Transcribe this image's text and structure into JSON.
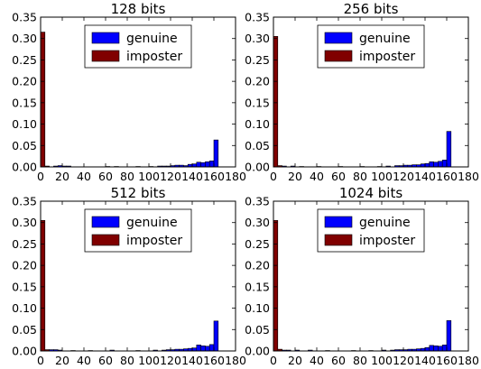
{
  "colors": {
    "genuine": "#0000ff",
    "imposter": "#800000",
    "axis": "#000000",
    "background": "#ffffff"
  },
  "chart_data": [
    {
      "type": "bar",
      "title": "128 bits",
      "xlim": [
        0,
        180
      ],
      "ylim": [
        0,
        0.35
      ],
      "xticks": [
        "0",
        "20",
        "40",
        "60",
        "80",
        "100",
        "120",
        "140",
        "160",
        "180"
      ],
      "yticks": [
        "0.00",
        "0.05",
        "0.10",
        "0.15",
        "0.20",
        "0.25",
        "0.30",
        "0.35"
      ],
      "legend": {
        "position": "top-center",
        "entries": [
          "genuine",
          "imposter"
        ]
      },
      "bin_width": 4,
      "series": [
        {
          "name": "imposter",
          "bins": [
            [
              0,
              0.315
            ],
            [
              4,
              0.002
            ]
          ]
        },
        {
          "name": "genuine",
          "bins": [
            [
              12,
              0.002
            ],
            [
              16,
              0.003
            ],
            [
              20,
              0.002
            ],
            [
              24,
              0.002
            ],
            [
              60,
              0.001
            ],
            [
              68,
              0.001
            ],
            [
              88,
              0.001
            ],
            [
              100,
              0.001
            ],
            [
              108,
              0.002
            ],
            [
              112,
              0.002
            ],
            [
              116,
              0.002
            ],
            [
              120,
              0.003
            ],
            [
              124,
              0.004
            ],
            [
              128,
              0.004
            ],
            [
              132,
              0.003
            ],
            [
              136,
              0.006
            ],
            [
              140,
              0.007
            ],
            [
              144,
              0.011
            ],
            [
              148,
              0.01
            ],
            [
              152,
              0.012
            ],
            [
              156,
              0.014
            ],
            [
              160,
              0.063
            ]
          ]
        }
      ]
    },
    {
      "type": "bar",
      "title": "256 bits",
      "xlim": [
        0,
        180
      ],
      "ylim": [
        0,
        0.35
      ],
      "xticks": [
        "0",
        "20",
        "40",
        "60",
        "80",
        "100",
        "120",
        "140",
        "160",
        "180"
      ],
      "yticks": [
        "0.00",
        "0.05",
        "0.10",
        "0.15",
        "0.20",
        "0.25",
        "0.30",
        "0.35"
      ],
      "legend": {
        "position": "top-center",
        "entries": [
          "genuine",
          "imposter"
        ]
      },
      "bin_width": 4,
      "series": [
        {
          "name": "imposter",
          "bins": [
            [
              0,
              0.305
            ],
            [
              4,
              0.003
            ]
          ]
        },
        {
          "name": "genuine",
          "bins": [
            [
              8,
              0.002
            ],
            [
              16,
              0.002
            ],
            [
              24,
              0.001
            ],
            [
              40,
              0.001
            ],
            [
              60,
              0.001
            ],
            [
              80,
              0.001
            ],
            [
              96,
              0.001
            ],
            [
              104,
              0.002
            ],
            [
              112,
              0.003
            ],
            [
              116,
              0.003
            ],
            [
              120,
              0.004
            ],
            [
              124,
              0.004
            ],
            [
              128,
              0.005
            ],
            [
              132,
              0.005
            ],
            [
              136,
              0.007
            ],
            [
              140,
              0.008
            ],
            [
              144,
              0.012
            ],
            [
              148,
              0.011
            ],
            [
              152,
              0.013
            ],
            [
              156,
              0.016
            ],
            [
              160,
              0.083
            ]
          ]
        }
      ]
    },
    {
      "type": "bar",
      "title": "512 bits",
      "xlim": [
        0,
        180
      ],
      "ylim": [
        0,
        0.35
      ],
      "xticks": [
        "0",
        "20",
        "40",
        "60",
        "80",
        "100",
        "120",
        "140",
        "160",
        "180"
      ],
      "yticks": [
        "0.00",
        "0.05",
        "0.10",
        "0.15",
        "0.20",
        "0.25",
        "0.30",
        "0.35"
      ],
      "legend": {
        "position": "top-center",
        "entries": [
          "genuine",
          "imposter"
        ]
      },
      "bin_width": 4,
      "series": [
        {
          "name": "imposter",
          "bins": [
            [
              0,
              0.305
            ],
            [
              4,
              0.003
            ]
          ]
        },
        {
          "name": "genuine",
          "bins": [
            [
              8,
              0.003
            ],
            [
              12,
              0.003
            ],
            [
              16,
              0.002
            ],
            [
              28,
              0.001
            ],
            [
              44,
              0.001
            ],
            [
              64,
              0.002
            ],
            [
              88,
              0.001
            ],
            [
              104,
              0.002
            ],
            [
              112,
              0.002
            ],
            [
              116,
              0.003
            ],
            [
              120,
              0.003
            ],
            [
              124,
              0.004
            ],
            [
              128,
              0.004
            ],
            [
              132,
              0.005
            ],
            [
              136,
              0.006
            ],
            [
              140,
              0.007
            ],
            [
              144,
              0.014
            ],
            [
              148,
              0.012
            ],
            [
              152,
              0.011
            ],
            [
              156,
              0.015
            ],
            [
              160,
              0.07
            ]
          ]
        }
      ]
    },
    {
      "type": "bar",
      "title": "1024 bits",
      "xlim": [
        0,
        180
      ],
      "ylim": [
        0,
        0.35
      ],
      "xticks": [
        "0",
        "20",
        "40",
        "60",
        "80",
        "100",
        "120",
        "140",
        "160",
        "180"
      ],
      "yticks": [
        "0.00",
        "0.05",
        "0.10",
        "0.15",
        "0.20",
        "0.25",
        "0.30",
        "0.35"
      ],
      "legend": {
        "position": "top-center",
        "entries": [
          "genuine",
          "imposter"
        ]
      },
      "bin_width": 4,
      "series": [
        {
          "name": "imposter",
          "bins": [
            [
              0,
              0.305
            ],
            [
              4,
              0.004
            ]
          ]
        },
        {
          "name": "genuine",
          "bins": [
            [
              8,
              0.002
            ],
            [
              12,
              0.002
            ],
            [
              20,
              0.002
            ],
            [
              32,
              0.002
            ],
            [
              48,
              0.001
            ],
            [
              72,
              0.001
            ],
            [
              88,
              0.001
            ],
            [
              100,
              0.002
            ],
            [
              108,
              0.002
            ],
            [
              112,
              0.003
            ],
            [
              116,
              0.003
            ],
            [
              120,
              0.003
            ],
            [
              124,
              0.004
            ],
            [
              128,
              0.004
            ],
            [
              132,
              0.005
            ],
            [
              136,
              0.006
            ],
            [
              140,
              0.008
            ],
            [
              144,
              0.013
            ],
            [
              148,
              0.012
            ],
            [
              152,
              0.011
            ],
            [
              156,
              0.014
            ],
            [
              160,
              0.071
            ]
          ]
        }
      ]
    }
  ]
}
